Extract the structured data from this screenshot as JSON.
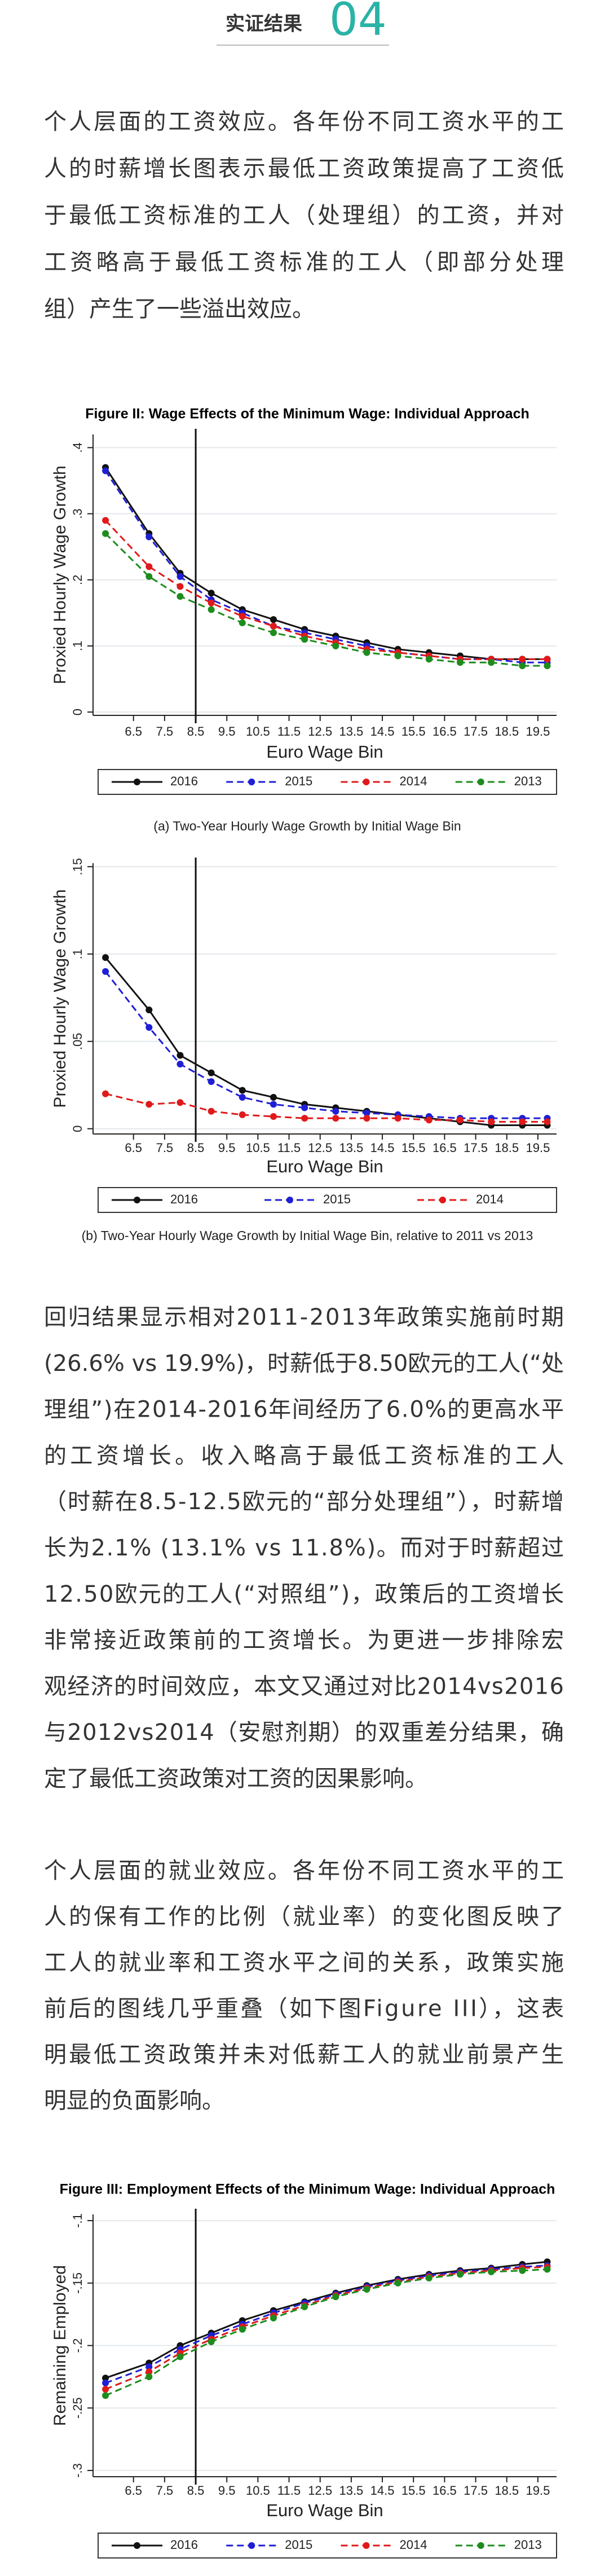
{
  "header": {
    "label": "实证结果",
    "number": "04"
  },
  "paragraphs": [
    {
      "lines": [
        "个人层面的工资效应。各年份不同工资水平的工",
        "人的时薪增长图表示最低工资政策提高了工资低",
        "于最低工资标准的工人（处理组）的工资，并对",
        "工资略高于最低工资标准的工人（即部分处理",
        "组）产生了一些溢出效应。"
      ]
    },
    {
      "lines": [
        "回归结果显示相对2011-2013年政策实施前时期",
        "(26.6% vs 19.9%)，时薪低于8.50欧元的工人(“处",
        "理组”)在2014-2016年间经历了6.0%的更高水平",
        "的工资增长。收入略高于最低工资标准的工人",
        "（时薪在8.5-12.5欧元的“部分处理组”），时薪增",
        "长为2.1% (13.1% vs 11.8%)。而对于时薪超过",
        "12.50欧元的工人(“对照组”)，政策后的工资增长",
        "非常接近政策前的工资增长。为更进一步排除宏",
        "观经济的时间效应，本文又通过对比2014vs2016",
        "与2012vs2014（安慰剂期）的双重差分结果，确",
        "定了最低工资政策对工资的因果影响。"
      ]
    },
    {
      "lines": [
        "个人层面的就业效应。各年份不同工资水平的工",
        "人的保有工作的比例（就业率）的变化图反映了",
        "工人的就业率和工资水平之间的关系，政策实施",
        "前后的图线几乎重叠（如下图Figure III），这表",
        "明最低工资政策并未对低薪工人的就业前景产生",
        "明显的负面影响。"
      ]
    }
  ],
  "charts": [
    {
      "type": "line",
      "title": "Figure II: Wage Effects of the Minimum Wage: Individual Approach",
      "caption": "(a) Two-Year Hourly Wage Growth by Initial Wage Bin",
      "x_label": "Euro Wage Bin",
      "y_label": "Proxied Hourly Wage Growth",
      "x": [
        5.6,
        7,
        8,
        9,
        10,
        11,
        12,
        13,
        14,
        15,
        16,
        17,
        18,
        19,
        19.8
      ],
      "xlim": [
        5.2,
        20.1
      ],
      "xticks": [
        6.5,
        7.5,
        8.5,
        9.5,
        10.5,
        11.5,
        12.5,
        13.5,
        14.5,
        15.5,
        16.5,
        17.5,
        18.5,
        19.5
      ],
      "vline": 8.5,
      "ylim": [
        -0.005,
        0.42
      ],
      "yticks": [
        0,
        {
          "value": 0.1,
          "label": ".1"
        },
        {
          "value": 0.2,
          "label": ".2"
        },
        {
          "value": 0.3,
          "label": ".3"
        },
        {
          "value": 0.4,
          "label": ".4"
        }
      ],
      "grid": true,
      "series": [
        {
          "name": "2016",
          "color": "#111111",
          "dashed": false,
          "values": [
            0.37,
            0.27,
            0.21,
            0.18,
            0.155,
            0.14,
            0.125,
            0.115,
            0.105,
            0.095,
            0.09,
            0.085,
            0.08,
            0.08,
            0.08
          ]
        },
        {
          "name": "2015",
          "color": "#1f1fd6",
          "dashed": true,
          "values": [
            0.365,
            0.265,
            0.205,
            0.17,
            0.15,
            0.13,
            0.12,
            0.11,
            0.1,
            0.09,
            0.085,
            0.08,
            0.08,
            0.075,
            0.075
          ]
        },
        {
          "name": "2014",
          "color": "#e01a1a",
          "dashed": true,
          "values": [
            0.29,
            0.22,
            0.19,
            0.165,
            0.145,
            0.13,
            0.115,
            0.105,
            0.095,
            0.09,
            0.085,
            0.08,
            0.08,
            0.08,
            0.08
          ]
        },
        {
          "name": "2013",
          "color": "#1d8c1d",
          "dashed": true,
          "values": [
            0.27,
            0.205,
            0.175,
            0.155,
            0.135,
            0.12,
            0.11,
            0.1,
            0.09,
            0.085,
            0.08,
            0.075,
            0.075,
            0.07,
            0.07
          ]
        }
      ]
    },
    {
      "type": "line",
      "caption": "(b) Two-Year Hourly Wage Growth by Initial Wage Bin, relative to 2011 vs 2013",
      "x_label": "Euro Wage Bin",
      "y_label": "Proxied Hourly Wage Growth",
      "x": [
        5.6,
        7,
        8,
        9,
        10,
        11,
        12,
        13,
        14,
        15,
        16,
        17,
        18,
        19,
        19.8
      ],
      "xlim": [
        5.2,
        20.1
      ],
      "xticks": [
        6.5,
        7.5,
        8.5,
        9.5,
        10.5,
        11.5,
        12.5,
        13.5,
        14.5,
        15.5,
        16.5,
        17.5,
        18.5,
        19.5
      ],
      "vline": 8.5,
      "ylim": [
        -0.003,
        0.152
      ],
      "yticks": [
        0,
        {
          "value": 0.05,
          "label": ".05"
        },
        {
          "value": 0.1,
          "label": ".1"
        },
        {
          "value": 0.15,
          "label": ".15"
        }
      ],
      "grid": true,
      "series": [
        {
          "name": "2016",
          "color": "#111111",
          "dashed": false,
          "values": [
            0.098,
            0.068,
            0.042,
            0.032,
            0.022,
            0.018,
            0.014,
            0.012,
            0.01,
            0.008,
            0.006,
            0.004,
            0.002,
            0.002,
            0.002
          ]
        },
        {
          "name": "2015",
          "color": "#1f1fd6",
          "dashed": true,
          "values": [
            0.09,
            0.058,
            0.037,
            0.027,
            0.018,
            0.014,
            0.012,
            0.01,
            0.009,
            0.008,
            0.007,
            0.006,
            0.006,
            0.006,
            0.006
          ]
        },
        {
          "name": "2014",
          "color": "#e01a1a",
          "dashed": true,
          "values": [
            0.02,
            0.014,
            0.015,
            0.01,
            0.008,
            0.007,
            0.006,
            0.006,
            0.006,
            0.006,
            0.005,
            0.005,
            0.004,
            0.004,
            0.004
          ]
        }
      ]
    },
    {
      "type": "line",
      "title": "Figure III: Employment Effects of the Minimum Wage: Individual Approach",
      "x_label": "Euro Wage Bin",
      "y_label": "Remaining Employed",
      "x": [
        5.6,
        7,
        8,
        9,
        10,
        11,
        12,
        13,
        14,
        15,
        16,
        17,
        18,
        19,
        19.8
      ],
      "xlim": [
        5.2,
        20.1
      ],
      "xticks": [
        6.5,
        7.5,
        8.5,
        9.5,
        10.5,
        11.5,
        12.5,
        13.5,
        14.5,
        15.5,
        16.5,
        17.5,
        18.5,
        19.5
      ],
      "vline": 8.5,
      "ylim": [
        -0.305,
        -0.095
      ],
      "yticks": [
        {
          "value": -0.3,
          "label": "-.3"
        },
        {
          "value": -0.25,
          "label": "-.25"
        },
        {
          "value": -0.2,
          "label": "-.2"
        },
        {
          "value": -0.15,
          "label": "-.15"
        },
        {
          "value": -0.1,
          "label": "-.1"
        }
      ],
      "grid": true,
      "series": [
        {
          "name": "2016",
          "color": "#111111",
          "dashed": false,
          "values": [
            -0.226,
            -0.214,
            -0.2,
            -0.19,
            -0.18,
            -0.172,
            -0.165,
            -0.158,
            -0.152,
            -0.147,
            -0.143,
            -0.14,
            -0.138,
            -0.135,
            -0.133
          ]
        },
        {
          "name": "2015",
          "color": "#1f1fd6",
          "dashed": true,
          "values": [
            -0.23,
            -0.217,
            -0.203,
            -0.192,
            -0.183,
            -0.174,
            -0.166,
            -0.159,
            -0.153,
            -0.148,
            -0.144,
            -0.141,
            -0.139,
            -0.137,
            -0.136
          ]
        },
        {
          "name": "2014",
          "color": "#e01a1a",
          "dashed": true,
          "values": [
            -0.235,
            -0.221,
            -0.206,
            -0.195,
            -0.185,
            -0.176,
            -0.168,
            -0.16,
            -0.154,
            -0.149,
            -0.145,
            -0.142,
            -0.14,
            -0.138,
            -0.137
          ]
        },
        {
          "name": "2013",
          "color": "#1d8c1d",
          "dashed": true,
          "values": [
            -0.24,
            -0.225,
            -0.209,
            -0.197,
            -0.187,
            -0.178,
            -0.169,
            -0.161,
            -0.155,
            -0.15,
            -0.146,
            -0.143,
            -0.141,
            -0.14,
            -0.139
          ]
        }
      ]
    }
  ]
}
